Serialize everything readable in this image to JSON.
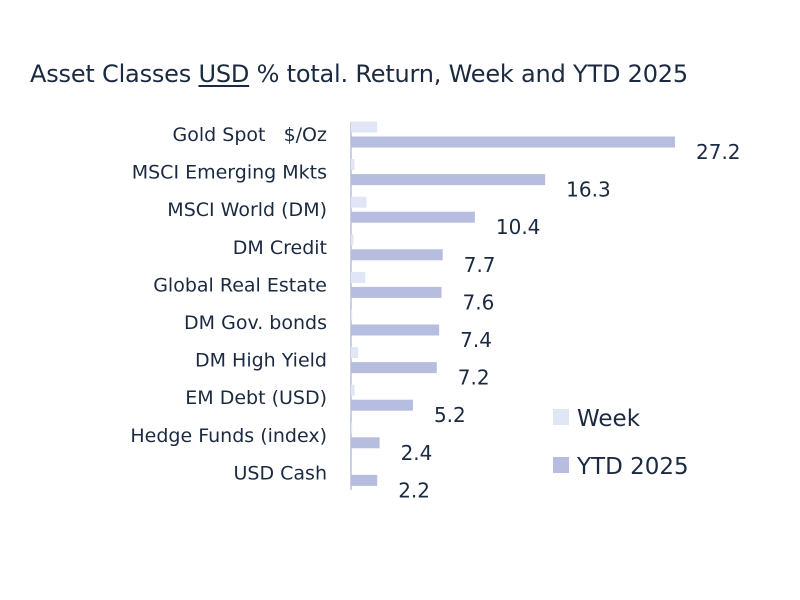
{
  "chart_data": {
    "type": "bar",
    "orientation": "horizontal",
    "title_parts": [
      "Asset Classes ",
      "USD",
      " % total. Return, Week and YTD 2025"
    ],
    "categories": [
      "Gold Spot   $/Oz",
      "MSCI Emerging Mkts",
      "MSCI World (DM)",
      "DM Credit",
      "Global Real Estate",
      "DM Gov. bonds",
      "DM High Yield",
      "EM Debt (USD)",
      "Hedge Funds (index)",
      "USD Cash"
    ],
    "series": [
      {
        "name": "Week",
        "color": "#e0e6f6",
        "values": [
          2.2,
          0.3,
          1.3,
          0.2,
          1.2,
          0.1,
          0.6,
          0.3,
          0.1,
          0.0
        ]
      },
      {
        "name": "YTD 2025",
        "color": "#b6bddf",
        "values": [
          27.2,
          16.3,
          10.4,
          7.7,
          7.6,
          7.4,
          7.2,
          5.2,
          2.4,
          2.2
        ]
      }
    ],
    "data_labels": [
      "27.2",
      "16.3",
      "10.4",
      "7.7",
      "7.6",
      "7.4",
      "7.2",
      "5.2",
      "2.4",
      "2.2"
    ],
    "legend_position": "right",
    "grid": false
  }
}
